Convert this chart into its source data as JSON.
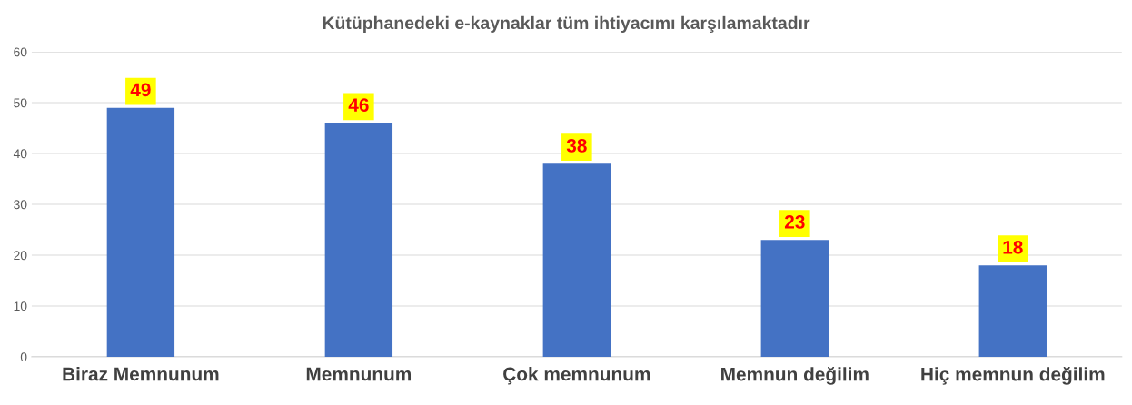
{
  "chart_data": {
    "type": "bar",
    "title": "Kütüphanedeki e-kaynaklar tüm ihtiyacımı karşılamaktadır",
    "categories": [
      "Biraz Memnunum",
      "Memnunum",
      "Çok memnunum",
      "Memnun değilim",
      "Hiç memnun değilim"
    ],
    "values": [
      49,
      46,
      38,
      23,
      18
    ],
    "color": "#4472c4",
    "ylim": [
      0,
      60
    ],
    "yticks": [
      0,
      10,
      20,
      30,
      40,
      50,
      60
    ],
    "grid": "y",
    "data_labels": true
  }
}
